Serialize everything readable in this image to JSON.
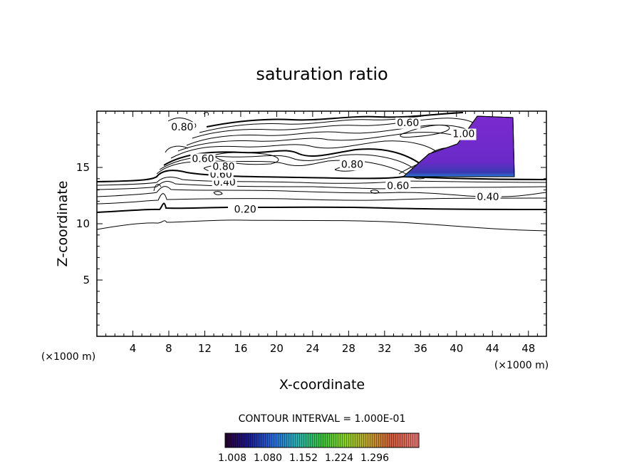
{
  "chart_data": {
    "type": "contour",
    "title": "saturation ratio",
    "xlabel": "X-coordinate",
    "ylabel": "Z-coordinate",
    "x_unit": "(×1000 m)",
    "z_unit": "(×1000 m)",
    "xlim": [
      0,
      50
    ],
    "ylim": [
      0,
      20
    ],
    "x_ticks": [
      4,
      8,
      12,
      16,
      20,
      24,
      28,
      32,
      36,
      40,
      44,
      48
    ],
    "y_ticks": [
      5,
      10,
      15
    ],
    "contour_interval_text": "CONTOUR INTERVAL = 1.000E-01",
    "contour_labels": [
      {
        "text": "0.20",
        "x": 16.5,
        "z": 11.3
      },
      {
        "text": "0.40",
        "x": 43.5,
        "z": 12.4
      },
      {
        "text": "0.40",
        "x": 14.2,
        "z": 13.7
      },
      {
        "text": "0.60",
        "x": 33.5,
        "z": 13.4
      },
      {
        "text": "0.60",
        "x": 13.8,
        "z": 14.4
      },
      {
        "text": "0.60",
        "x": 11.8,
        "z": 15.8
      },
      {
        "text": "0.60",
        "x": 34.6,
        "z": 19.0
      },
      {
        "text": "0.80",
        "x": 28.4,
        "z": 15.3
      },
      {
        "text": "0.80",
        "x": 14.1,
        "z": 15.1
      },
      {
        "text": "0.80",
        "x": 9.5,
        "z": 18.6
      },
      {
        "text": "1.00",
        "x": 40.8,
        "z": 18.0
      }
    ],
    "colorbar": {
      "tick_labels": [
        "1.008",
        "1.080",
        "1.152",
        "1.224",
        "1.296"
      ],
      "colors": [
        "#2a0030",
        "#1a1a8c",
        "#2a6ad8",
        "#2ab0b0",
        "#3ac03a",
        "#8ad02a",
        "#c0a030",
        "#d05a3a",
        "#d03030",
        "#e07a7a"
      ]
    },
    "supersaturated_region_color": "#7a2ad0",
    "grid": false
  }
}
